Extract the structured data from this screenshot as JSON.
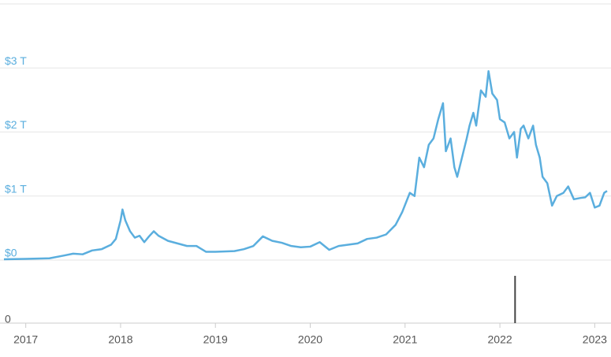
{
  "chart_data": [
    {
      "type": "line",
      "x": [
        2016.77,
        2017.0,
        2017.25,
        2017.4,
        2017.5,
        2017.6,
        2017.7,
        2017.8,
        2017.9,
        2017.95,
        2018.0,
        2018.02,
        2018.05,
        2018.1,
        2018.15,
        2018.2,
        2018.25,
        2018.3,
        2018.35,
        2018.4,
        2018.5,
        2018.6,
        2018.7,
        2018.8,
        2018.9,
        2019.0,
        2019.2,
        2019.3,
        2019.4,
        2019.5,
        2019.6,
        2019.7,
        2019.8,
        2019.9,
        2020.0,
        2020.1,
        2020.2,
        2020.3,
        2020.5,
        2020.6,
        2020.7,
        2020.8,
        2020.9,
        2020.97,
        2021.05,
        2021.1,
        2021.15,
        2021.2,
        2021.25,
        2021.3,
        2021.35,
        2021.4,
        2021.43,
        2021.48,
        2021.52,
        2021.55,
        2021.6,
        2021.65,
        2021.68,
        2021.72,
        2021.75,
        2021.8,
        2021.85,
        2021.88,
        2021.92,
        2021.97,
        2022.0,
        2022.05,
        2022.1,
        2022.15,
        2022.18,
        2022.22,
        2022.25,
        2022.3,
        2022.35,
        2022.38,
        2022.42,
        2022.45,
        2022.5,
        2022.55,
        2022.6,
        2022.67,
        2022.72,
        2022.78,
        2022.85,
        2022.9,
        2022.95,
        2023.0,
        2023.05,
        2023.1,
        2023.13
      ],
      "series": [
        {
          "color": "#5aaede",
          "values": [
            0.012,
            0.018,
            0.028,
            0.07,
            0.1,
            0.09,
            0.15,
            0.17,
            0.24,
            0.33,
            0.62,
            0.79,
            0.62,
            0.45,
            0.35,
            0.38,
            0.28,
            0.37,
            0.45,
            0.38,
            0.3,
            0.26,
            0.22,
            0.22,
            0.13,
            0.13,
            0.14,
            0.17,
            0.22,
            0.37,
            0.3,
            0.27,
            0.22,
            0.2,
            0.21,
            0.28,
            0.16,
            0.22,
            0.26,
            0.33,
            0.35,
            0.4,
            0.55,
            0.75,
            1.05,
            1.0,
            1.6,
            1.45,
            1.8,
            1.9,
            2.2,
            2.45,
            1.7,
            1.9,
            1.45,
            1.3,
            1.6,
            1.9,
            2.1,
            2.3,
            2.1,
            2.65,
            2.55,
            2.95,
            2.6,
            2.5,
            2.2,
            2.15,
            1.9,
            2.0,
            1.6,
            2.05,
            2.1,
            1.9,
            2.1,
            1.8,
            1.6,
            1.3,
            1.2,
            0.85,
            1.0,
            1.05,
            1.15,
            0.95,
            0.97,
            0.98,
            1.05,
            0.82,
            0.85,
            1.05,
            1.08
          ]
        }
      ],
      "xlim": [
        2016.77,
        2023.13
      ],
      "xticks": [
        2017,
        2018,
        2019,
        2020,
        2021,
        2022,
        2023
      ],
      "ylim": [
        0,
        4
      ],
      "yticks": [
        {
          "value": 0,
          "label": "$0"
        },
        {
          "value": 1,
          "label": "$1 T"
        },
        {
          "value": 2,
          "label": "$2 T"
        },
        {
          "value": 3,
          "label": "$3 T"
        }
      ],
      "grid": true
    },
    {
      "type": "bar",
      "x": [
        2022.16
      ],
      "values": [
        0.75
      ],
      "color": "#444444",
      "ylim": [
        0,
        1
      ],
      "yticks": [
        0
      ]
    }
  ]
}
